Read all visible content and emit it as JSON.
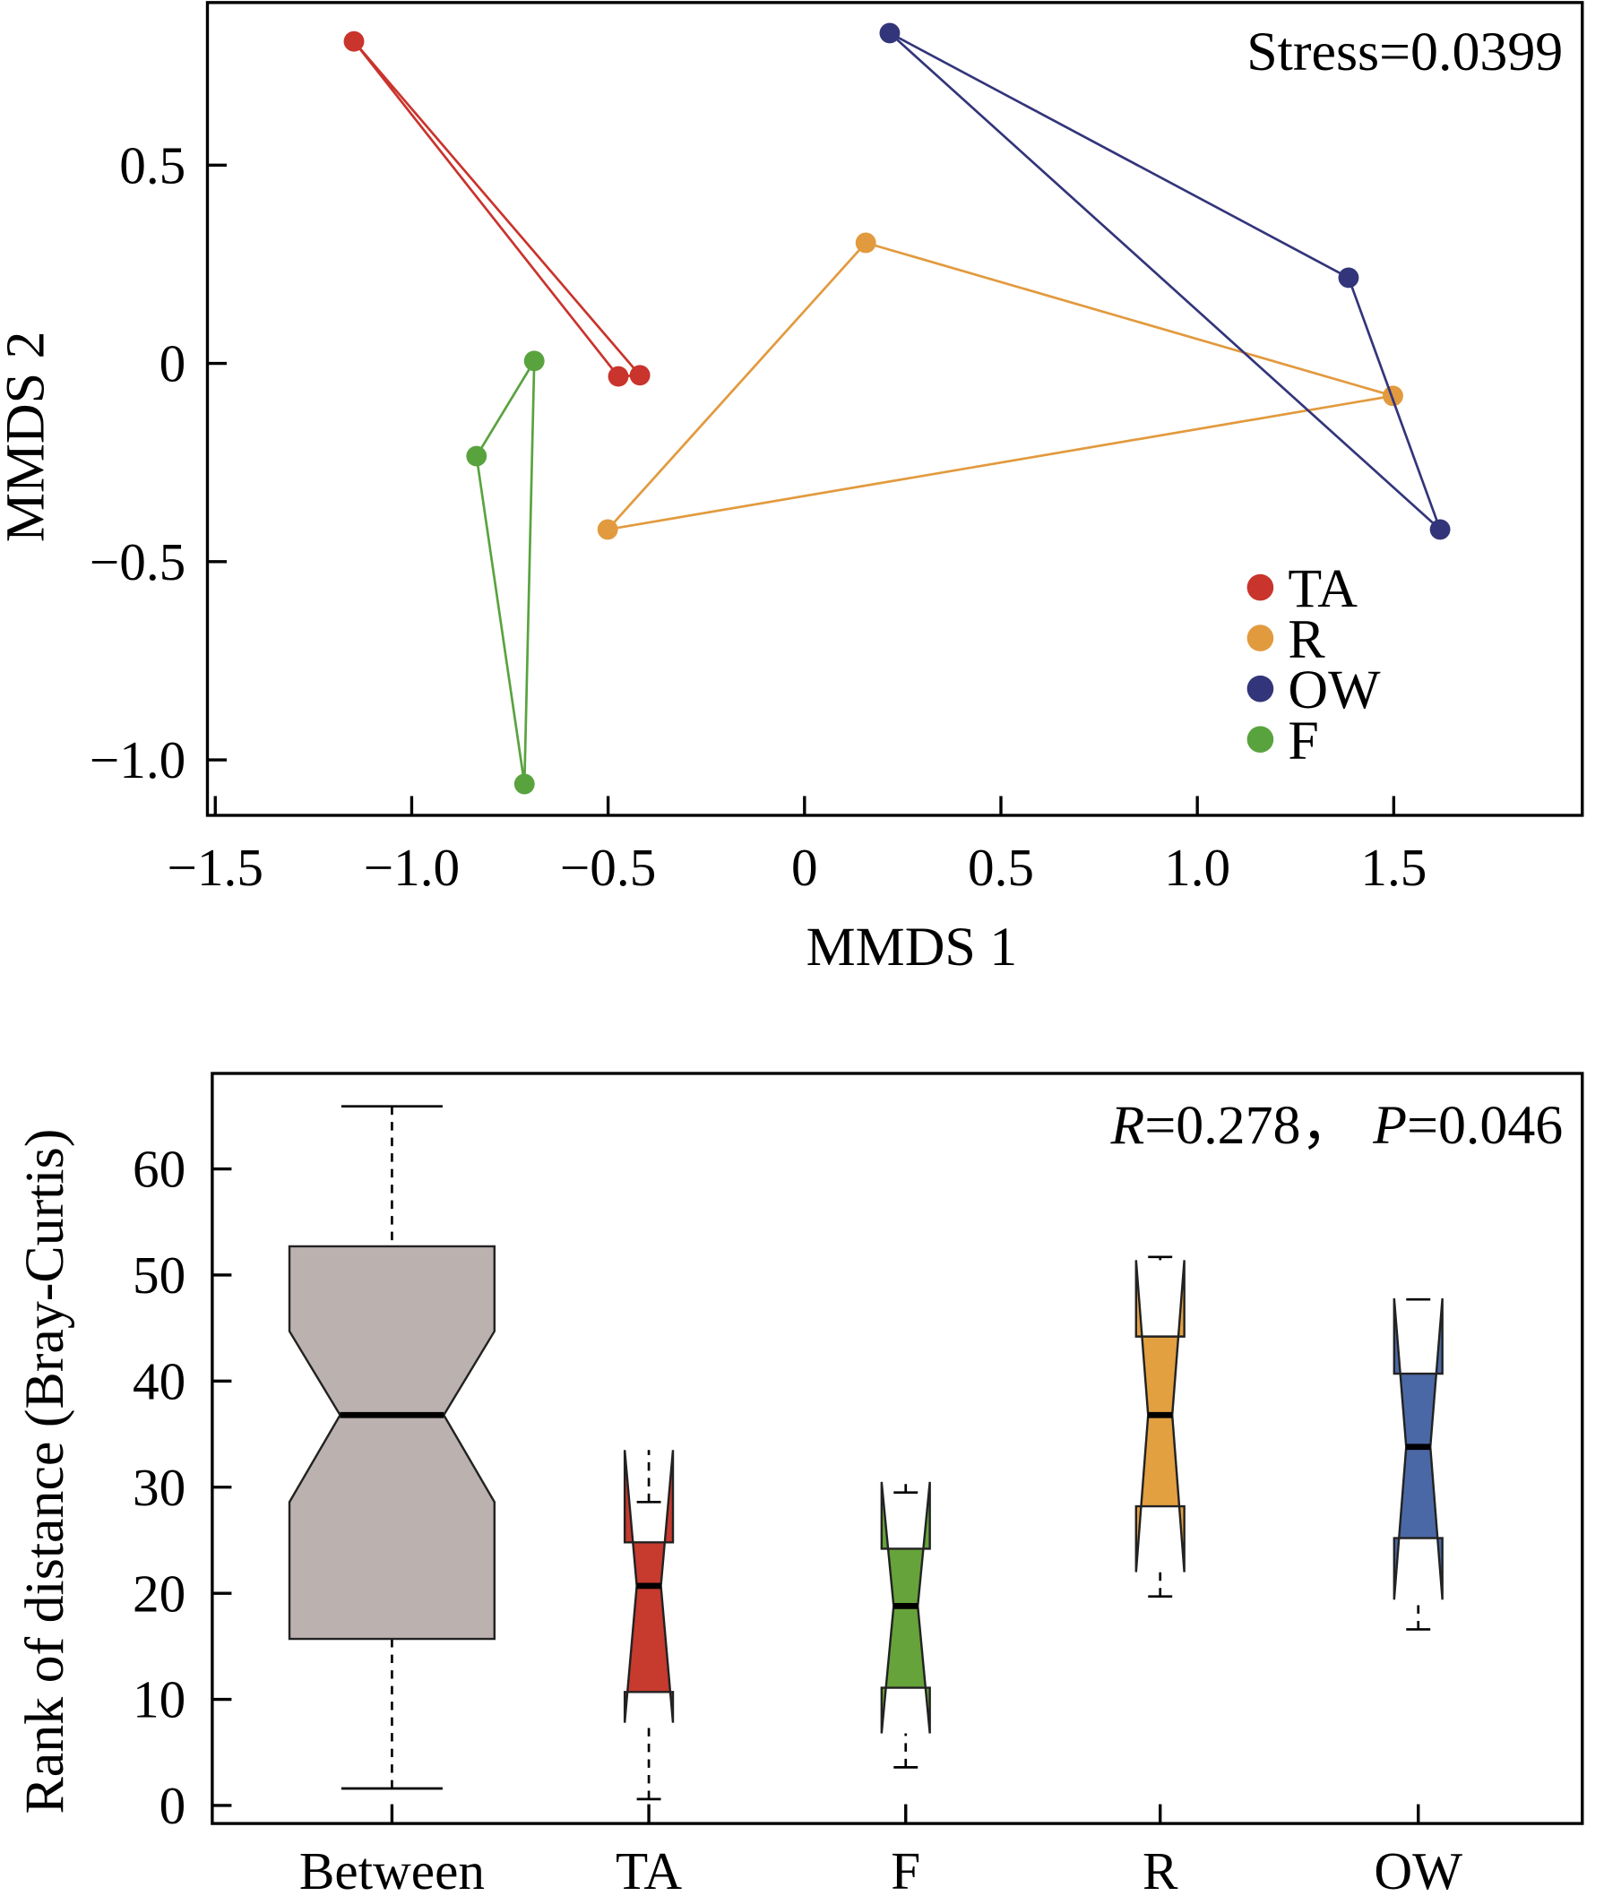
{
  "chart_data": [
    {
      "type": "scatter",
      "xlabel": "MMDS 1",
      "ylabel": "MMDS 2",
      "xlim": [
        -1.52,
        1.98
      ],
      "ylim": [
        -1.14,
        0.91
      ],
      "xticks": [
        -1.5,
        -1.0,
        -0.5,
        0,
        0.5,
        1.0,
        1.5
      ],
      "xtick_labels": [
        "−1.5",
        "−1.0",
        "−0.5",
        "0",
        "0.5",
        "1.0",
        "1.5"
      ],
      "yticks": [
        0.5,
        0,
        -0.5,
        -1.0
      ],
      "ytick_labels": [
        "0.5",
        "0",
        "−0.5",
        "−1.0"
      ],
      "annotation": "Stress=0.0399",
      "legend_position": "bottom-right",
      "grid": false,
      "series": [
        {
          "name": "TA",
          "color": "#c9342c",
          "points": [
            [
              -1.147,
              0.812
            ],
            [
              -0.474,
              -0.033
            ],
            [
              -0.419,
              -0.03
            ]
          ]
        },
        {
          "name": "R",
          "color": "#e29a3e",
          "points": [
            [
              0.156,
              0.304
            ],
            [
              1.498,
              -0.082
            ],
            [
              -0.501,
              -0.419
            ]
          ]
        },
        {
          "name": "OW",
          "color": "#33357a",
          "points": [
            [
              0.217,
              0.833
            ],
            [
              1.385,
              0.216
            ],
            [
              1.618,
              -0.419
            ]
          ]
        },
        {
          "name": "F",
          "color": "#59a33f",
          "points": [
            [
              -0.688,
              0.006
            ],
            [
              -0.835,
              -0.234
            ],
            [
              -0.713,
              -1.061
            ]
          ]
        }
      ]
    },
    {
      "type": "box",
      "ylabel": "Rank of distance (Bray-Curtis)",
      "ylim": [
        -1.7,
        69
      ],
      "yticks": [
        0,
        10,
        20,
        30,
        40,
        50,
        60
      ],
      "ytick_labels": [
        "0",
        "10",
        "20",
        "30",
        "40",
        "50",
        "60"
      ],
      "annotation": {
        "r_label": "R",
        "r_value": "=0.278，",
        "p_label": "P",
        "p_value": "=0.046"
      },
      "grid": false,
      "categories": [
        "Between",
        "TA",
        "F",
        "R",
        "OW"
      ],
      "boxes": [
        {
          "name": "Between",
          "color": "#bbb1af",
          "whisker_low": 1.6,
          "q1": 15.7,
          "notch_low": 28.6,
          "median": 36.8,
          "notch_high": 44.7,
          "q3": 52.7,
          "whisker_high": 65.9
        },
        {
          "name": "TA",
          "color": "#c73a2e",
          "whisker_low": 0.6,
          "q1": 10.7,
          "notch_low": 7.8,
          "median": 20.7,
          "notch_high": 33.5,
          "q3": 24.8,
          "whisker_high": 28.6
        },
        {
          "name": "F",
          "color": "#66a33a",
          "whisker_low": 3.6,
          "q1": 11.1,
          "notch_low": 6.8,
          "median": 18.8,
          "notch_high": 30.5,
          "q3": 24.2,
          "whisker_high": 29.5
        },
        {
          "name": "R",
          "color": "#e3a040",
          "whisker_low": 19.7,
          "q1": 28.2,
          "notch_low": 22.0,
          "median": 36.8,
          "notch_high": 51.4,
          "q3": 44.2,
          "whisker_high": 51.7
        },
        {
          "name": "OW",
          "color": "#4b68a6",
          "whisker_low": 16.6,
          "q1": 25.2,
          "notch_low": 19.4,
          "median": 33.8,
          "notch_high": 47.8,
          "q3": 40.7,
          "whisker_high": 47.7
        }
      ]
    }
  ]
}
